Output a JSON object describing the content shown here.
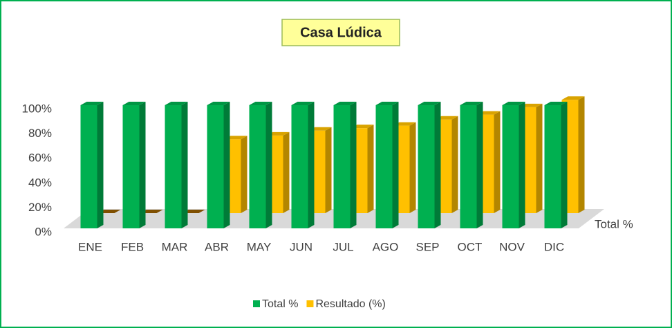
{
  "chart_data": {
    "type": "bar3d",
    "title": "Casa Lúdica",
    "categories": [
      "ENE",
      "FEB",
      "MAR",
      "ABR",
      "MAY",
      "JUN",
      "JUL",
      "AGO",
      "SEP",
      "OCT",
      "NOV",
      "DIC"
    ],
    "series": [
      {
        "name": "Total %",
        "color": "#00b050",
        "values": [
          100,
          100,
          100,
          100,
          100,
          100,
          100,
          100,
          100,
          100,
          100,
          100
        ]
      },
      {
        "name": "Resultado (%)",
        "color": "#ffc000",
        "values": [
          0,
          0,
          0,
          60,
          63,
          67,
          69,
          71,
          76,
          80,
          86,
          92
        ]
      }
    ],
    "depth_label": "Total %",
    "ylim": [
      0,
      100
    ],
    "yticks": [
      {
        "value": 0,
        "label": "0%"
      },
      {
        "value": 20,
        "label": "20%"
      },
      {
        "value": 40,
        "label": "40%"
      },
      {
        "value": 60,
        "label": "60%"
      },
      {
        "value": 80,
        "label": "80%"
      },
      {
        "value": 100,
        "label": "100%"
      }
    ],
    "legend": "bottom"
  }
}
